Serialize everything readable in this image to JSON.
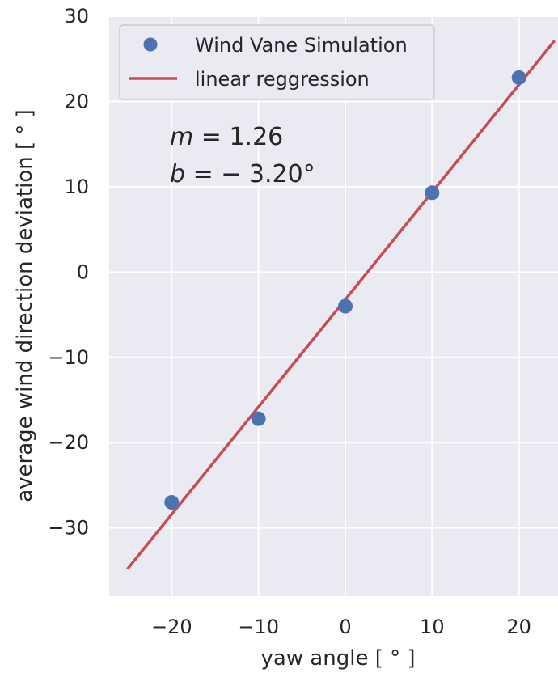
{
  "chart_data": {
    "type": "scatter",
    "xlabel": "yaw angle [ ° ]",
    "ylabel": "average wind direction deviation [ ° ]",
    "xlim": [
      -27.2,
      24.5
    ],
    "ylim": [
      -38,
      30
    ],
    "x_ticks": [
      -20,
      -10,
      0,
      10,
      20
    ],
    "y_ticks": [
      -30,
      -20,
      -10,
      0,
      10,
      20,
      30
    ],
    "x_tick_labels": [
      "−20",
      "−10",
      "0",
      "10",
      "20"
    ],
    "y_tick_labels": [
      "−30",
      "−20",
      "−10",
      "0",
      "10",
      "20",
      "30"
    ],
    "grid": true,
    "legend_position": "top-left",
    "series": [
      {
        "name": "Wind Vane Simulation",
        "kind": "scatter",
        "color": "#4c72b0",
        "x": [
          -20,
          -10,
          0,
          10,
          20
        ],
        "y": [
          -27.0,
          -17.2,
          -4.0,
          9.3,
          22.8
        ]
      },
      {
        "name": "linear reggression",
        "kind": "line",
        "color": "#c44e52",
        "x": [
          -25,
          24
        ],
        "y": [
          -34.7,
          27.0
        ]
      }
    ],
    "annotations": [
      {
        "italic": "m",
        "rest": " = 1.26"
      },
      {
        "italic": "b",
        "rest": " = − 3.20°"
      }
    ]
  }
}
